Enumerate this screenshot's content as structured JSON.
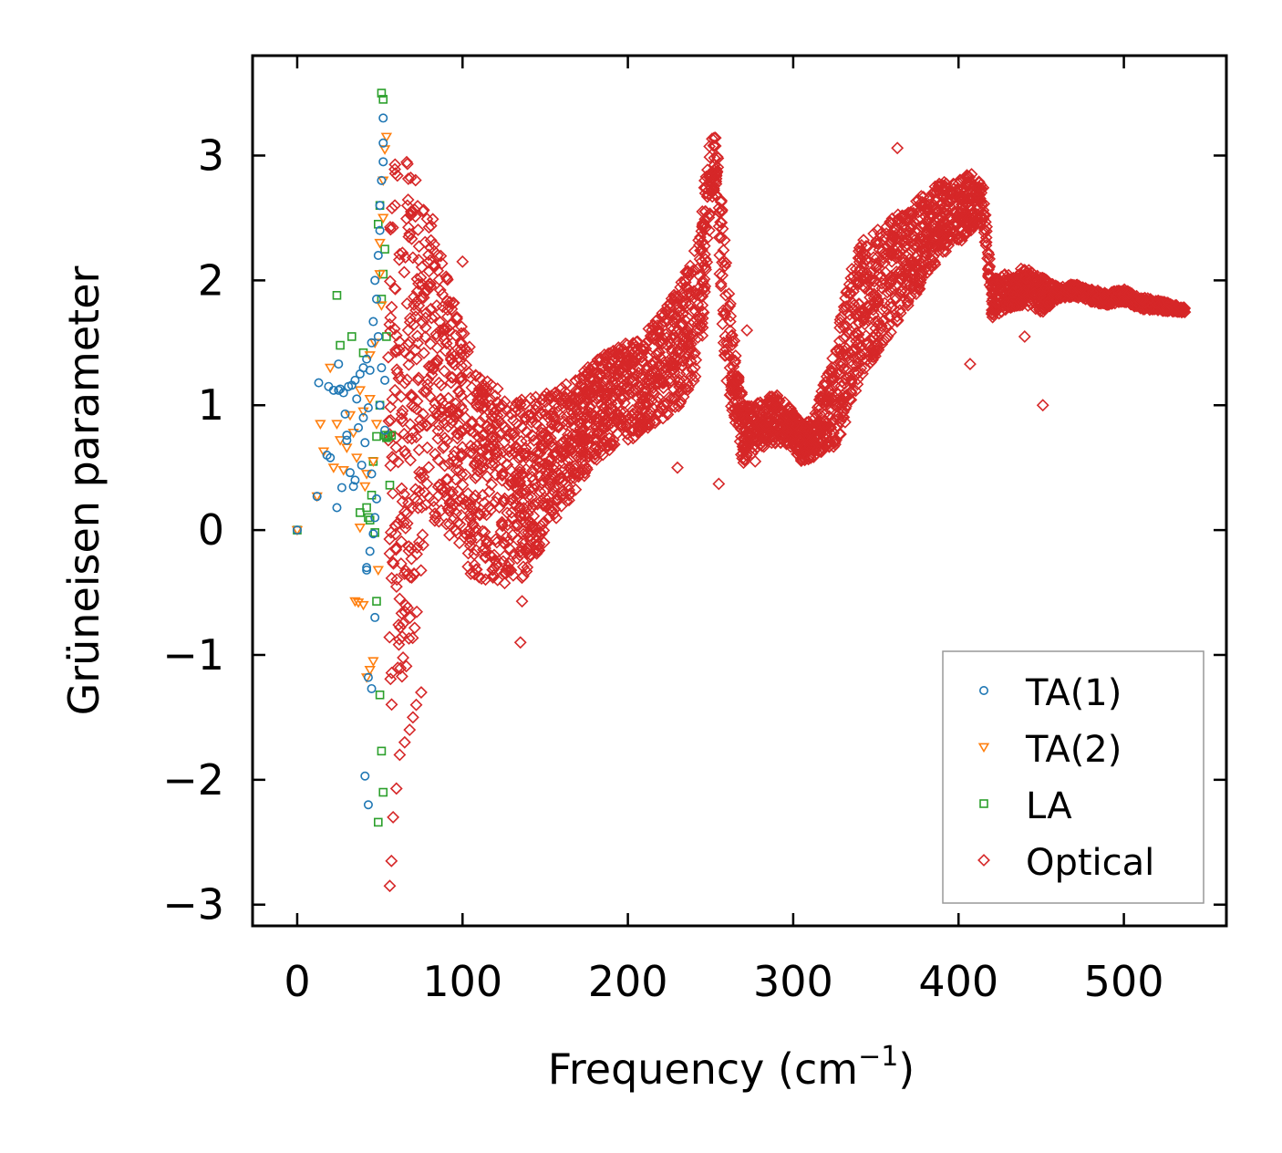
{
  "chart_data": {
    "type": "scatter",
    "title": "",
    "xlabel": "Frequency (cm",
    "xlabel_sup": "−1",
    "xlabel_close": ")",
    "ylabel": "Grüneisen parameter",
    "xlim": [
      -27,
      562
    ],
    "ylim": [
      -3.17,
      3.8
    ],
    "xticks": [
      0,
      100,
      200,
      300,
      400,
      500
    ],
    "yticks": [
      3,
      2,
      1,
      0,
      -1,
      -2,
      -3
    ],
    "xtick_labels": [
      "0",
      "100",
      "200",
      "300",
      "400",
      "500"
    ],
    "ytick_labels": [
      "3",
      "2",
      "1",
      "0",
      "−1",
      "−2",
      "−3"
    ],
    "legend_position": "bottom-right",
    "colors": {
      "TA(1)": "#1f77b4",
      "TA(2)": "#ff7f0e",
      "LA": "#2ca02c",
      "Optical": "#d62728"
    },
    "series": [
      {
        "name": "TA(1)",
        "marker": "circle",
        "x": [
          0,
          12,
          13,
          18,
          19,
          20,
          22,
          24,
          25,
          26,
          27,
          28,
          29,
          30,
          31,
          32,
          33,
          34,
          35,
          36,
          37,
          38,
          39,
          40,
          40,
          41,
          42,
          42,
          43,
          44,
          44,
          45,
          45,
          46,
          46,
          47,
          47,
          48,
          48,
          49,
          49,
          50,
          50,
          50,
          51,
          51,
          52,
          52,
          52,
          53,
          53,
          41,
          43,
          45,
          47,
          43,
          42,
          35,
          30,
          25
        ],
        "y": [
          0.0,
          0.27,
          1.18,
          0.6,
          1.15,
          0.58,
          1.12,
          0.18,
          1.33,
          1.13,
          0.34,
          1.1,
          0.93,
          0.72,
          1.15,
          0.46,
          1.16,
          0.35,
          1.2,
          1.05,
          0.82,
          1.25,
          0.52,
          1.3,
          0.9,
          0.7,
          1.37,
          -0.32,
          0.98,
          1.28,
          -0.17,
          0.45,
          1.5,
          -0.03,
          1.67,
          0.1,
          2.0,
          1.85,
          0.25,
          2.2,
          1.55,
          2.4,
          1.0,
          2.6,
          2.8,
          1.3,
          2.95,
          3.1,
          3.3,
          1.2,
          0.8,
          -1.97,
          -2.2,
          -1.27,
          -0.7,
          -1.18,
          -0.3,
          0.4,
          0.76,
          1.12
        ]
      },
      {
        "name": "TA(2)",
        "marker": "triangle-down",
        "x": [
          0,
          12,
          14,
          16,
          20,
          22,
          24,
          26,
          28,
          30,
          32,
          34,
          36,
          38,
          40,
          42,
          44,
          46,
          48,
          50,
          52,
          53,
          54,
          35,
          37,
          40,
          42,
          44,
          46,
          49,
          51,
          38,
          41,
          44,
          47,
          50,
          52
        ],
        "y": [
          0.0,
          0.27,
          0.85,
          0.63,
          1.3,
          0.5,
          0.85,
          0.72,
          0.48,
          0.66,
          0.92,
          0.78,
          0.58,
          1.12,
          0.95,
          0.45,
          1.4,
          0.55,
          0.85,
          2.3,
          2.8,
          3.05,
          3.15,
          -0.57,
          -0.58,
          -0.6,
          -1.18,
          -1.12,
          -1.05,
          -0.32,
          1.8,
          0.02,
          0.35,
          1.05,
          1.5,
          2.05,
          2.5
        ]
      },
      {
        "name": "LA",
        "marker": "square",
        "x": [
          0,
          24,
          26,
          33,
          40,
          42,
          44,
          46,
          48,
          49,
          50,
          50,
          51,
          51,
          52,
          52,
          53,
          53,
          54,
          54,
          55,
          56,
          57,
          49,
          50,
          51,
          52,
          48,
          47,
          45,
          43,
          38
        ],
        "y": [
          0.0,
          1.88,
          1.48,
          1.55,
          1.42,
          0.18,
          0.08,
          0.55,
          0.75,
          2.45,
          1.0,
          2.6,
          1.85,
          3.5,
          2.05,
          3.45,
          0.76,
          2.25,
          0.74,
          1.55,
          0.75,
          0.36,
          0.76,
          -2.34,
          -1.32,
          -1.77,
          -2.1,
          -0.57,
          -0.02,
          0.28,
          0.1,
          0.14
        ]
      },
      {
        "name": "Optical",
        "marker": "diamond",
        "rendering": "dense band",
        "centerline": {
          "x": [
            55,
            60,
            65,
            70,
            75,
            80,
            85,
            90,
            95,
            100,
            110,
            120,
            130,
            140,
            150,
            160,
            170,
            180,
            190,
            200,
            210,
            220,
            230,
            240,
            245,
            250,
            253,
            256,
            260,
            265,
            270,
            275,
            280,
            290,
            300,
            305,
            310,
            315,
            320,
            325,
            330,
            335,
            340,
            350,
            360,
            370,
            380,
            390,
            400,
            405,
            410,
            415,
            420,
            430,
            440,
            450,
            460,
            470,
            480,
            490,
            500,
            510,
            520,
            530,
            537
          ],
          "y": [
            0.9,
            0.85,
            0.95,
            1.0,
            1.1,
            1.3,
            1.2,
            1.05,
            0.9,
            0.7,
            0.45,
            0.35,
            0.3,
            0.35,
            0.5,
            0.65,
            0.8,
            0.95,
            1.05,
            1.1,
            1.2,
            1.3,
            1.45,
            1.7,
            2.1,
            2.85,
            2.95,
            2.3,
            1.6,
            1.15,
            0.75,
            0.8,
            0.85,
            0.9,
            0.8,
            0.7,
            0.72,
            0.8,
            0.95,
            1.05,
            1.3,
            1.55,
            1.75,
            1.9,
            2.05,
            2.2,
            2.35,
            2.5,
            2.55,
            2.6,
            2.65,
            2.6,
            1.85,
            1.92,
            1.95,
            1.88,
            1.9,
            1.92,
            1.88,
            1.85,
            1.88,
            1.82,
            1.8,
            1.78,
            1.76
          ]
        },
        "spread": {
          "x": [
            55,
            60,
            65,
            70,
            75,
            80,
            85,
            90,
            95,
            100,
            110,
            120,
            130,
            140,
            150,
            160,
            170,
            180,
            190,
            200,
            210,
            220,
            230,
            240,
            245,
            250,
            253,
            256,
            260,
            265,
            270,
            275,
            280,
            290,
            300,
            305,
            310,
            315,
            320,
            325,
            330,
            335,
            340,
            350,
            360,
            370,
            380,
            390,
            400,
            405,
            410,
            415,
            420,
            430,
            440,
            450,
            460,
            470,
            480,
            490,
            500,
            510,
            520,
            530,
            537
          ],
          "y": [
            2.4,
            2.3,
            2.1,
            1.9,
            1.5,
            1.2,
            1.15,
            1.05,
            1.0,
            0.95,
            0.85,
            0.8,
            0.75,
            0.7,
            0.6,
            0.5,
            0.45,
            0.4,
            0.4,
            0.4,
            0.4,
            0.42,
            0.5,
            0.55,
            0.55,
            0.3,
            0.25,
            0.5,
            0.45,
            0.35,
            0.25,
            0.2,
            0.2,
            0.2,
            0.15,
            0.15,
            0.15,
            0.2,
            0.3,
            0.4,
            0.5,
            0.55,
            0.55,
            0.5,
            0.45,
            0.4,
            0.35,
            0.3,
            0.25,
            0.25,
            0.2,
            0.15,
            0.15,
            0.15,
            0.15,
            0.15,
            0.05,
            0.05,
            0.05,
            0.05,
            0.05,
            0.05,
            0.04,
            0.03,
            0.02
          ]
        },
        "outliers": {
          "x": [
            56,
            57,
            58,
            60,
            62,
            65,
            68,
            70,
            72,
            75,
            82,
            85,
            100,
            105,
            135,
            136,
            230,
            255,
            272,
            277,
            363,
            407,
            440,
            451
          ],
          "y": [
            -2.85,
            -2.65,
            -2.3,
            -2.07,
            -1.8,
            -1.7,
            -1.6,
            -1.5,
            -1.4,
            -1.3,
            2.49,
            2.2,
            2.15,
            -0.35,
            -0.9,
            -0.57,
            0.5,
            0.37,
            1.6,
            0.55,
            3.06,
            1.33,
            1.55,
            1.0
          ]
        }
      }
    ]
  }
}
